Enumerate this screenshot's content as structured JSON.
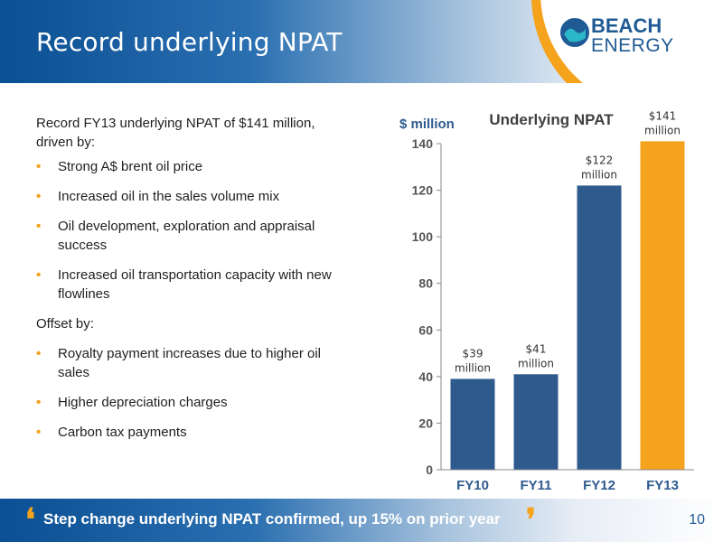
{
  "header": {
    "title": "Record underlying NPAT"
  },
  "logo": {
    "line1": "BEACH",
    "line2": "ENERGY"
  },
  "left": {
    "intro": "Record FY13 underlying NPAT of $141 million, driven by:",
    "drivers": [
      "Strong A$ brent oil price",
      "Increased oil in the sales volume mix",
      "Oil development, exploration and appraisal success",
      "Increased oil transportation capacity with new flowlines"
    ],
    "offset_label": "Offset by:",
    "offsets": [
      "Royalty payment increases due to higher oil sales",
      "Higher depreciation charges",
      "Carbon tax payments"
    ]
  },
  "footer": {
    "text": "Step change underlying NPAT confirmed, up 15% on prior year",
    "page_number": "10"
  },
  "colors": {
    "navy": "#2e5a8e",
    "orange": "#f5a21c"
  },
  "chart_data": {
    "type": "bar",
    "title": "Underlying NPAT",
    "ylabel": "$ million",
    "xlabel": "",
    "categories": [
      "FY10",
      "FY11",
      "FY12",
      "FY13"
    ],
    "values": [
      39,
      41,
      122,
      141
    ],
    "data_labels": [
      [
        "$39",
        "million"
      ],
      [
        "$41",
        "million"
      ],
      [
        "$122",
        "million"
      ],
      [
        "$141",
        "million"
      ]
    ],
    "bar_colors": [
      "#2e5a8e",
      "#2e5a8e",
      "#2e5a8e",
      "#f5a21c"
    ],
    "ylim": [
      0,
      140
    ],
    "yticks": [
      0,
      20,
      40,
      60,
      80,
      100,
      120,
      140
    ],
    "grid": false,
    "legend": "none"
  }
}
